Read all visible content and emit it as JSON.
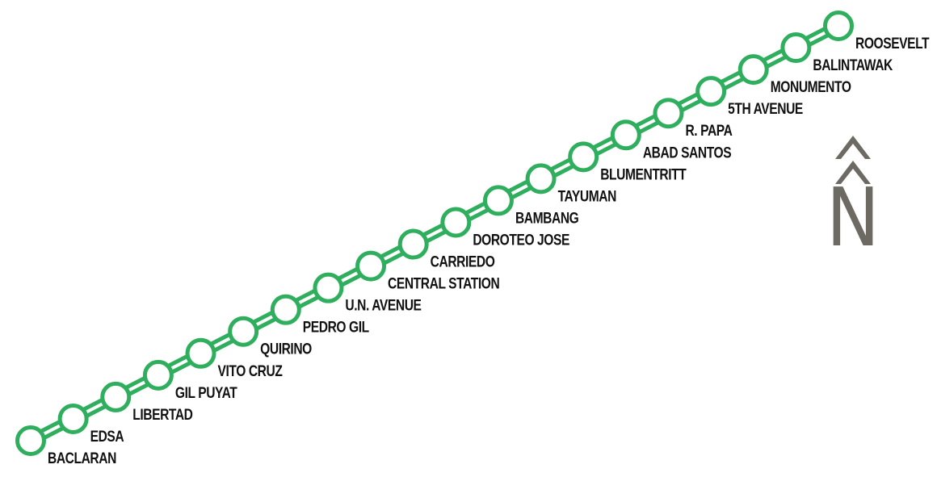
{
  "line": {
    "color": "#2fae5e",
    "stations": [
      "BACLARAN",
      "EDSA",
      "LIBERTAD",
      "GIL PUYAT",
      "VITO CRUZ",
      "QUIRINO",
      "PEDRO GIL",
      "U.N. AVENUE",
      "CENTRAL STATION",
      "CARRIEDO",
      "DOROTEO JOSE",
      "BAMBANG",
      "TAYUMAN",
      "BLUMENTRITT",
      "ABAD SANTOS",
      "R. PAPA",
      "5TH AVENUE",
      "MONUMENTO",
      "BALINTAWAK",
      "ROOSEVELT"
    ]
  },
  "compass": {
    "letter": "N",
    "color": "#6d6a63"
  },
  "label_color": "#111111"
}
